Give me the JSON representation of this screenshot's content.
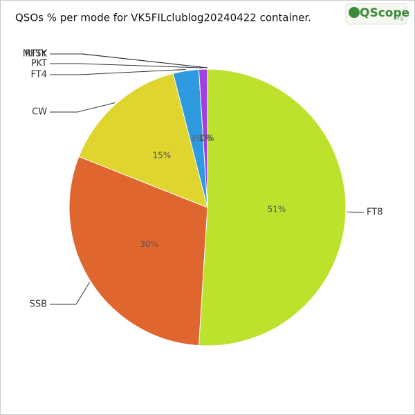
{
  "chart_data": {
    "type": "pie",
    "title": "QSOs % per mode for VK5FILclublog20240422 container.",
    "logo": {
      "text": "QScope",
      "suffix": ".org"
    },
    "categories": [
      "FT8",
      "SSB",
      "CW",
      "FT4",
      "PKT",
      "RTTY",
      "MFSK"
    ],
    "values": [
      51,
      30,
      15,
      3,
      1,
      0,
      0
    ],
    "value_labels": [
      "51%",
      "30%",
      "15%",
      "3%",
      "1%",
      "0%",
      "0%"
    ],
    "colors": [
      "#bde22e",
      "#e06630",
      "#e0d42e",
      "#2e9ae0",
      "#a040e0",
      "#c040c0",
      "#e040a0"
    ]
  }
}
